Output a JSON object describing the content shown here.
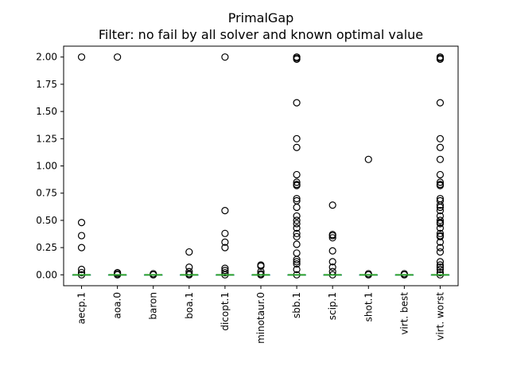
{
  "chart_data": {
    "type": "box",
    "title": "PrimalGap",
    "subtitle": "Filter: no fail by all solver and known optimal value",
    "xlabel": "",
    "ylabel": "",
    "ylim": [
      -0.1,
      2.1
    ],
    "yticks": [
      0.0,
      0.25,
      0.5,
      0.75,
      1.0,
      1.25,
      1.5,
      1.75,
      2.0
    ],
    "ytick_labels": [
      "0.00",
      "0.25",
      "0.50",
      "0.75",
      "1.00",
      "1.25",
      "1.50",
      "1.75",
      "2.00"
    ],
    "grid": false,
    "legend": "none",
    "median_color": "#2ca02c",
    "box_color": "#1f77b4",
    "categories": [
      "aecp.1",
      "aoa.0",
      "baron",
      "boa.1",
      "dicopt.1",
      "minotaur.0",
      "sbb.1",
      "scip.1",
      "shot.1",
      "virt. best",
      "virt. worst"
    ],
    "boxes": [
      {
        "label": "aecp.1",
        "median": 0.0,
        "q1": 0.0,
        "q3": 0.0,
        "whisker_low": 0.0,
        "whisker_high": 0.0,
        "outliers": [
          2.0,
          0.48,
          0.36,
          0.25,
          0.05,
          0.02,
          0.0
        ]
      },
      {
        "label": "aoa.0",
        "median": 0.0,
        "q1": 0.0,
        "q3": 0.0,
        "whisker_low": 0.0,
        "whisker_high": 0.0,
        "outliers": [
          2.0,
          0.02,
          0.01,
          0.0
        ]
      },
      {
        "label": "baron",
        "median": 0.0,
        "q1": 0.0,
        "q3": 0.0,
        "whisker_low": 0.0,
        "whisker_high": 0.0,
        "outliers": [
          0.01,
          0.0
        ]
      },
      {
        "label": "boa.1",
        "median": 0.0,
        "q1": 0.0,
        "q3": 0.0,
        "whisker_low": 0.0,
        "whisker_high": 0.0,
        "outliers": [
          0.21,
          0.07,
          0.03,
          0.01,
          0.0
        ]
      },
      {
        "label": "dicopt.1",
        "median": 0.0,
        "q1": 0.0,
        "q3": 0.0,
        "whisker_low": 0.0,
        "whisker_high": 0.0,
        "outliers": [
          2.0,
          0.59,
          0.38,
          0.3,
          0.25,
          0.06,
          0.04,
          0.02,
          0.0
        ]
      },
      {
        "label": "minotaur.0",
        "median": 0.0,
        "q1": 0.0,
        "q3": 0.0,
        "whisker_low": 0.0,
        "whisker_high": 0.0,
        "outliers": [
          0.09,
          0.08,
          0.03,
          0.01,
          0.0
        ]
      },
      {
        "label": "sbb.1",
        "median": 0.0,
        "q1": 0.0,
        "q3": 0.0,
        "whisker_low": 0.0,
        "whisker_high": 0.0,
        "outliers": [
          2.0,
          1.99,
          1.98,
          1.58,
          1.25,
          1.17,
          0.92,
          0.85,
          0.83,
          0.82,
          0.7,
          0.68,
          0.62,
          0.54,
          0.5,
          0.47,
          0.43,
          0.38,
          0.35,
          0.28,
          0.2,
          0.14,
          0.12,
          0.1,
          0.05,
          0.0
        ]
      },
      {
        "label": "scip.1",
        "median": 0.0,
        "q1": 0.0,
        "q3": 0.0,
        "whisker_low": 0.0,
        "whisker_high": 0.0,
        "outliers": [
          0.64,
          0.37,
          0.36,
          0.34,
          0.22,
          0.12,
          0.07,
          0.03,
          0.0
        ]
      },
      {
        "label": "shot.1",
        "median": 0.0,
        "q1": 0.0,
        "q3": 0.0,
        "whisker_low": 0.0,
        "whisker_high": 0.0,
        "outliers": [
          1.06,
          0.01,
          0.0
        ]
      },
      {
        "label": "virt. best",
        "median": 0.0,
        "q1": 0.0,
        "q3": 0.0,
        "whisker_low": 0.0,
        "whisker_high": 0.0,
        "outliers": [
          0.01,
          0.0
        ]
      },
      {
        "label": "virt. worst",
        "median": 0.0,
        "q1": 0.0,
        "q3": 0.0,
        "whisker_low": 0.0,
        "whisker_high": 0.0,
        "outliers": [
          2.0,
          1.99,
          1.98,
          1.58,
          1.25,
          1.17,
          1.06,
          0.92,
          0.85,
          0.83,
          0.82,
          0.7,
          0.68,
          0.64,
          0.62,
          0.59,
          0.54,
          0.5,
          0.48,
          0.47,
          0.43,
          0.38,
          0.36,
          0.35,
          0.3,
          0.25,
          0.21,
          0.12,
          0.09,
          0.07,
          0.05,
          0.02,
          0.0
        ]
      }
    ]
  }
}
